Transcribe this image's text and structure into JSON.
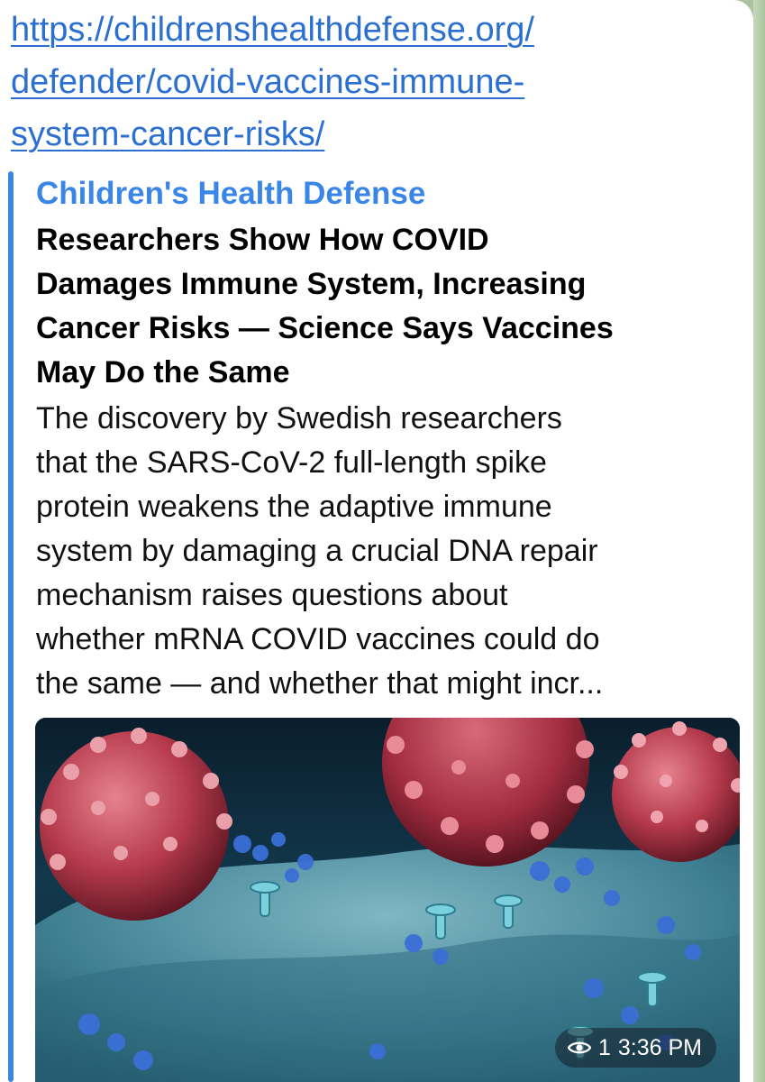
{
  "message": {
    "link_lines": [
      "https://childrenshealthdefense.org/",
      "defender/covid-vaccines-immune-",
      "system-cancer-risks/"
    ],
    "preview": {
      "site_name": "Children's Health Defense",
      "title_lines": [
        "Researchers Show How COVID",
        "Damages Immune System, Increasing",
        "Cancer Risks — Science Says Vaccines",
        "May Do the Same"
      ],
      "description_lines": [
        "The discovery by Swedish researchers",
        "that the SARS-CoV-2 full-length spike",
        "protein weakens the adaptive immune",
        "system by damaging a crucial DNA repair",
        "mechanism raises questions about",
        "whether mRNA COVID vaccines could do",
        "the same — and whether that might incr..."
      ],
      "image_icon": "virus-illustration"
    },
    "meta": {
      "view_icon": "eye-icon",
      "views": "1",
      "time": "3:36 PM"
    }
  },
  "colors": {
    "link": "#2a6fd1",
    "accent": "#3a86e8",
    "chat_background": "#a9c3a0"
  }
}
